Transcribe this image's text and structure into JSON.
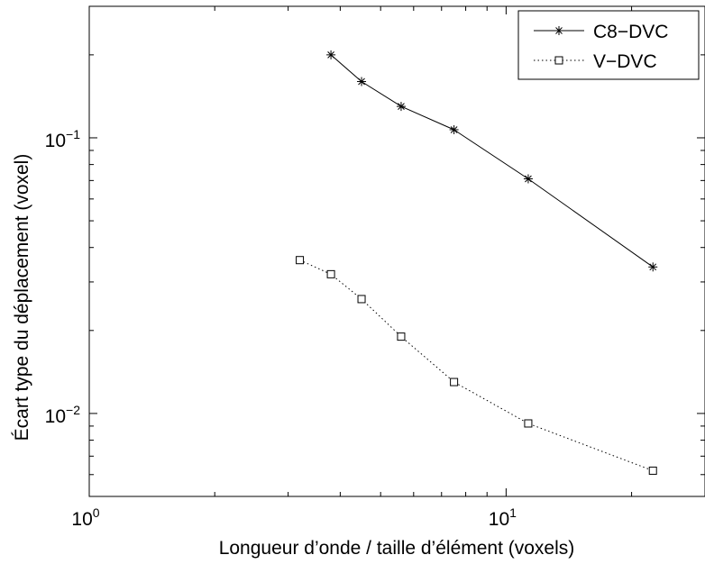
{
  "chart_data": {
    "type": "line",
    "xscale": "log",
    "yscale": "log",
    "xlim": [
      1,
      30
    ],
    "ylim": [
      0.005,
      0.3
    ],
    "xlabel": "Longueur d’onde / taille d’élément (voxels)",
    "ylabel": "Écart type du déplacement (voxel)",
    "x_ticks": [
      {
        "value": 1,
        "base": "10",
        "exp": "0"
      },
      {
        "value": 10,
        "base": "10",
        "exp": "1"
      }
    ],
    "y_ticks": [
      {
        "value": 0.01,
        "base": "10",
        "exp": "−2"
      },
      {
        "value": 0.1,
        "base": "10",
        "exp": "−1"
      }
    ],
    "grid": false,
    "legend_position": "top-right",
    "series": [
      {
        "name": "C8−DVC",
        "marker": "asterisk",
        "linestyle": "solid",
        "x": [
          3.8,
          4.5,
          5.6,
          7.5,
          11.3,
          22.5
        ],
        "y": [
          0.2,
          0.16,
          0.13,
          0.107,
          0.071,
          0.034
        ]
      },
      {
        "name": "V−DVC",
        "marker": "square",
        "linestyle": "dotted",
        "x": [
          3.2,
          3.8,
          4.5,
          5.6,
          7.5,
          11.3,
          22.5
        ],
        "y": [
          0.036,
          0.032,
          0.026,
          0.019,
          0.013,
          0.0092,
          0.0062
        ]
      }
    ]
  }
}
